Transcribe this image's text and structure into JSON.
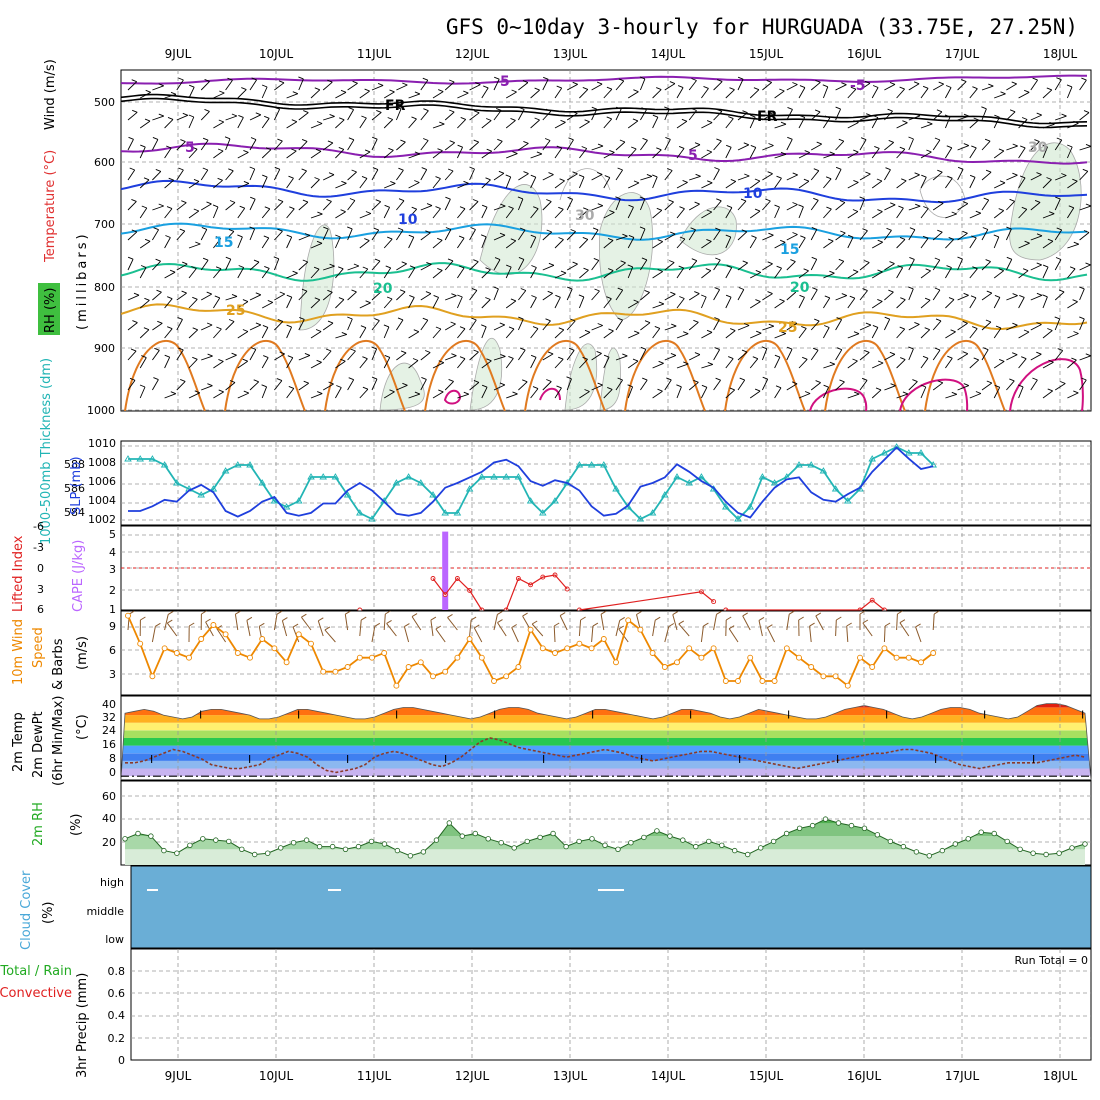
{
  "title": "GFS 0~10day 3-hourly for HURGUADA (33.75E, 27.25N)",
  "colors": {
    "temp": "#ff0000",
    "rh": "#22bb22",
    "wind": "#000000",
    "thickness": "#22b5b5",
    "slp": "#1f3fdd",
    "lifted": "#e02020",
    "cape": "#bb66ff",
    "wind10": "#ee8800",
    "cloud": "#6aaed6",
    "temp_p": "#3355ff"
  },
  "dates": [
    "9JUL",
    "10JUL",
    "11JUL",
    "12JUL",
    "13JUL",
    "14JUL",
    "15JUL",
    "16JUL",
    "17JUL",
    "18JUL"
  ],
  "panels": {
    "upper": {
      "ylabel_parts": [
        "RH (%)",
        "Temperature (°C)",
        "Wind (m/s)"
      ],
      "ylabel2": "(millibars)",
      "ticks": [
        "500",
        "600",
        "700",
        "800",
        "900",
        "1000"
      ],
      "contour_labels": [
        "5",
        "FR",
        "10",
        "15",
        "20",
        "25",
        "30"
      ]
    },
    "thick": {
      "ylabel_left": "1000-500mb Thickness (dm)",
      "ylabel_right": "SLP (mb)",
      "ticks_left": [
        "588",
        "586",
        "584"
      ],
      "ticks_right": [
        "1010",
        "1008",
        "1006",
        "1004",
        "1002"
      ]
    },
    "li": {
      "ylabel_left": "Lifted Index",
      "ylabel_right": "CAPE (J/kg)",
      "ticks_left": [
        "-6",
        "-3",
        "0",
        "3",
        "6"
      ],
      "ticks_right": [
        "5",
        "4",
        "3",
        "2",
        "1"
      ]
    },
    "wind10": {
      "ylabel1": "10m Wind",
      "ylabel2": "Speed",
      "ylabel3": "& Barbs",
      "ylabel4": "(m/s)",
      "ticks": [
        "9",
        "6",
        "3"
      ]
    },
    "temp": {
      "ylabel1": "2m Temp",
      "ylabel2": "2m DewPt",
      "ylabel3": "(6hr Min/Max)",
      "ylabel4": "(°C)",
      "ticks": [
        "40",
        "32",
        "24",
        "16",
        "8",
        "0"
      ]
    },
    "rh": {
      "ylabel": "2m RH",
      "ylabel2": "(%)",
      "ticks": [
        "60",
        "40",
        "20"
      ]
    },
    "cloud": {
      "ylabel": "Cloud Cover",
      "ylabel2": "(%)",
      "levels": [
        "high",
        "middle",
        "low"
      ]
    },
    "precip": {
      "ylabel1": "Total / Rain",
      "ylabel2": "Convective",
      "ylabel3": "3hr Precip (mm)",
      "ticks": [
        "0.8",
        "0.6",
        "0.4",
        "0.2",
        "0"
      ],
      "run_total": "Run Total = 0"
    }
  },
  "chart_data": [
    {
      "type": "line",
      "title": "",
      "ylabel": "1000-500mb Thickness (dm)",
      "series": [
        {
          "name": "1000-500mb Thickness (dm)",
          "values": [
            588.0,
            588.0,
            588.0,
            587.5,
            586.0,
            585.5,
            585.0,
            585.5,
            587.0,
            587.5,
            587.5,
            586.0,
            584.5,
            584.0,
            584.5,
            586.5,
            586.5,
            586.5,
            585.0,
            583.5,
            583.0,
            584.5,
            586.0,
            586.5,
            586.0,
            585.0,
            583.5,
            583.5,
            585.5,
            586.5,
            586.5,
            586.5,
            586.5,
            584.5,
            583.5,
            584.5,
            586.0,
            587.5,
            587.5,
            587.5,
            585.5,
            584.0,
            583.0,
            583.5,
            585.0,
            586.5,
            586.0,
            586.5,
            585.5,
            584.0,
            583.0,
            584.0,
            586.5,
            586.0,
            586.5,
            587.5,
            587.5,
            587.0,
            585.5,
            584.5,
            585.5,
            588.0,
            588.5,
            589.0,
            588.5,
            588.5,
            587.5
          ]
        }
      ],
      "ylim": [
        582.5,
        589.5
      ]
    },
    {
      "type": "line",
      "title": "",
      "ylabel": "SLP (mb)",
      "series": [
        {
          "name": "SLP (mb)",
          "values": [
            1003.0,
            1003.0,
            1003.5,
            1004.2,
            1004.0,
            1005.2,
            1005.8,
            1005.0,
            1003.0,
            1002.4,
            1003.0,
            1004.0,
            1004.5,
            1002.8,
            1002.5,
            1002.8,
            1003.8,
            1003.8,
            1005.2,
            1006.0,
            1005.2,
            1004.0,
            1002.7,
            1002.5,
            1002.8,
            1004.0,
            1005.5,
            1006.0,
            1006.6,
            1007.2,
            1008.2,
            1008.5,
            1007.8,
            1006.2,
            1005.7,
            1006.3,
            1006.0,
            1005.2,
            1003.5,
            1002.5,
            1002.7,
            1003.6,
            1005.6,
            1006.0,
            1006.6,
            1008.0,
            1007.2,
            1006.2,
            1005.5,
            1004.0,
            1002.8,
            1002.3,
            1004.0,
            1005.5,
            1006.4,
            1006.6,
            1005.0,
            1004.2,
            1004.0,
            1004.8,
            1005.5,
            1007.2,
            1008.5,
            1009.8,
            1008.6,
            1007.5,
            1007.8
          ]
        }
      ],
      "ylim": [
        1001.5,
        1010.5
      ]
    },
    {
      "type": "bar",
      "title": "",
      "ylabel": "CAPE (J/kg)",
      "series": [
        {
          "name": "CAPE (J/kg)",
          "points": [
            {
              "x": 26,
              "y": 5.2
            }
          ]
        }
      ],
      "ylim": [
        1,
        5.5
      ]
    },
    {
      "type": "line",
      "title": "",
      "ylabel": "Lifted Index",
      "series": [
        {
          "name": "Lifted Index",
          "points": [
            {
              "x": 19,
              "y": 6.0
            },
            {
              "x": 25,
              "y": 1.5
            },
            {
              "x": 26,
              "y": 3.8
            },
            {
              "x": 27,
              "y": 1.5
            },
            {
              "x": 28,
              "y": 3.2
            },
            {
              "x": 29,
              "y": 6.0
            },
            {
              "x": 31,
              "y": 6.0
            },
            {
              "x": 32,
              "y": 1.5
            },
            {
              "x": 33,
              "y": 2.4
            },
            {
              "x": 34,
              "y": 1.3
            },
            {
              "x": 35,
              "y": 1.0
            },
            {
              "x": 36,
              "y": 3.0
            },
            {
              "x": 37,
              "y": 6.0
            },
            {
              "x": 47,
              "y": 3.4
            },
            {
              "x": 48,
              "y": 4.8
            },
            {
              "x": 49,
              "y": 6.0
            },
            {
              "x": 60,
              "y": 6.0
            },
            {
              "x": 61,
              "y": 4.6
            },
            {
              "x": 62,
              "y": 6.0
            }
          ]
        }
      ],
      "ylim": [
        -6,
        6
      ]
    },
    {
      "type": "line",
      "title": "",
      "ylabel": "10m Wind Speed & Barbs (m/s)",
      "series": [
        {
          "name": "10m Wind Speed (m/s)",
          "values": [
            9.5,
            6.5,
            3.0,
            6.0,
            5.5,
            5.0,
            7.0,
            8.5,
            7.5,
            5.5,
            5.0,
            7.0,
            6.0,
            4.5,
            7.5,
            6.5,
            3.5,
            3.5,
            4.0,
            5.0,
            5.0,
            5.5,
            2.0,
            4.0,
            4.5,
            3.0,
            3.5,
            5.0,
            7.0,
            5.0,
            2.5,
            3.0,
            4.0,
            8.0,
            6.0,
            5.5,
            6.0,
            6.5,
            6.0,
            7.0,
            4.5,
            9.0,
            8.0,
            5.5,
            4.0,
            4.5,
            6.0,
            5.0,
            6.0,
            2.5,
            2.5,
            5.0,
            2.5,
            2.5,
            6.0,
            5.0,
            4.0,
            3.0,
            3.0,
            2.0,
            5.0,
            4.0,
            6.0,
            5.0,
            5.0,
            4.5,
            5.5
          ]
        }
      ],
      "ylim": [
        1,
        10
      ]
    },
    {
      "type": "line",
      "title": "",
      "ylabel": "2m Temp / 2m DewPt (6hr Min/Max) (°C)",
      "series": [
        {
          "name": "2m Temp (°C)",
          "values": [
            33,
            34,
            35,
            34,
            32,
            31,
            30,
            31,
            34,
            35,
            35,
            34,
            33,
            32,
            30,
            30,
            31,
            33,
            35,
            35,
            34,
            33,
            32,
            31,
            30,
            30,
            31,
            33,
            35,
            36,
            36,
            35,
            34,
            33,
            32,
            31,
            30,
            31,
            33,
            35,
            36,
            36,
            35,
            33,
            32,
            31,
            30,
            31,
            33,
            35,
            35,
            34,
            33,
            32,
            31,
            30,
            31,
            33,
            35,
            35,
            34,
            33,
            31,
            30,
            31,
            33,
            35,
            34,
            33,
            32,
            31,
            30,
            30,
            31,
            33,
            35,
            36,
            37,
            36,
            35,
            33,
            31,
            30,
            31,
            33,
            35,
            36,
            36,
            35,
            33,
            32,
            31,
            30,
            31,
            34,
            37,
            38,
            38,
            37,
            35,
            33
          ]
        },
        {
          "name": "2m DewPt (°C)",
          "values": [
            7,
            7,
            8,
            10,
            12,
            14,
            13,
            11,
            9,
            6,
            5,
            4,
            4,
            5,
            6,
            9,
            11,
            13,
            12,
            10,
            6,
            3,
            2,
            3,
            4,
            6,
            10,
            12,
            13,
            12,
            10,
            8,
            6,
            5,
            7,
            10,
            14,
            18,
            20,
            19,
            17,
            15,
            14,
            13,
            12,
            11,
            10,
            11,
            12,
            13,
            14,
            13,
            12,
            10,
            9,
            8,
            9,
            10,
            11,
            12,
            13,
            13,
            12,
            11,
            10,
            9,
            8,
            7,
            6,
            5,
            4,
            5,
            6,
            7,
            8,
            9,
            10,
            11,
            12,
            12,
            13,
            14,
            14,
            13,
            12,
            10,
            8,
            6,
            5,
            4,
            5,
            6,
            7,
            7,
            7,
            7,
            8,
            9,
            10,
            11,
            10
          ]
        }
      ],
      "ylim": [
        -2,
        42
      ]
    },
    {
      "type": "area",
      "title": "",
      "ylabel": "2m RH (%)",
      "series": [
        {
          "name": "2m RH (%)",
          "values": [
            28,
            32,
            30,
            19,
            17,
            23,
            28,
            27,
            26,
            20,
            16,
            17,
            21,
            25,
            27,
            22,
            22,
            20,
            22,
            26,
            24,
            19,
            15,
            18,
            27,
            40,
            30,
            32,
            28,
            25,
            21,
            26,
            29,
            32,
            22,
            26,
            28,
            23,
            20,
            25,
            29,
            34,
            30,
            27,
            22,
            26,
            23,
            19,
            16,
            21,
            26,
            32,
            36,
            38,
            43,
            40,
            38,
            36,
            31,
            26,
            22,
            18,
            15,
            19,
            24,
            28,
            33,
            32,
            26,
            20,
            17,
            16,
            17,
            21,
            24
          ]
        }
      ],
      "ylim": [
        8,
        72
      ]
    }
  ]
}
